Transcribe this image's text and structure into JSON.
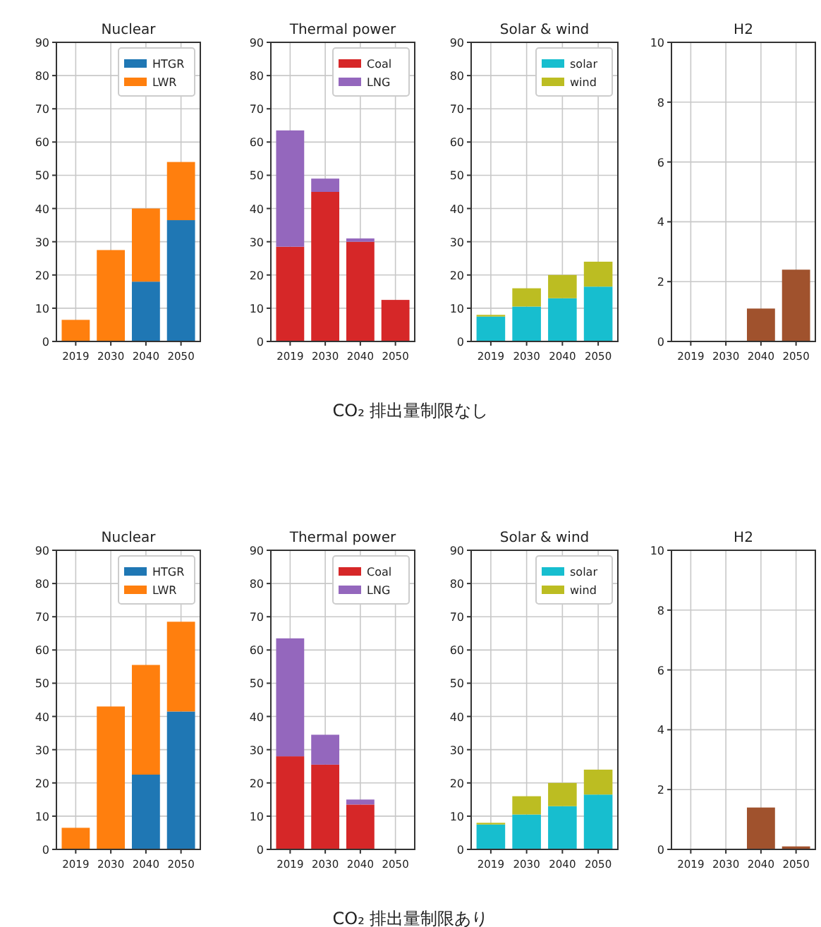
{
  "chart_data": [
    {
      "type": "bar",
      "title": "Nuclear",
      "categories": [
        "2019",
        "2030",
        "2040",
        "2050"
      ],
      "stacked": true,
      "ylim": [
        0,
        90
      ],
      "yticks": [
        0,
        10,
        20,
        30,
        40,
        50,
        60,
        70,
        80,
        90
      ],
      "grid": true,
      "legend": "top right",
      "annotations": [
        "CO₂ 排出量制限なし"
      ],
      "series": [
        {
          "name": "HTGR",
          "color": "#1f77b4",
          "values": [
            0,
            0,
            18,
            36.5
          ]
        },
        {
          "name": "LWR",
          "color": "#ff7f0e",
          "values": [
            6.5,
            27.5,
            22,
            17.5
          ]
        }
      ]
    },
    {
      "type": "bar",
      "title": "Thermal power",
      "categories": [
        "2019",
        "2030",
        "2040",
        "2050"
      ],
      "stacked": true,
      "ylim": [
        0,
        90
      ],
      "yticks": [
        0,
        10,
        20,
        30,
        40,
        50,
        60,
        70,
        80,
        90
      ],
      "grid": true,
      "legend": "top right",
      "series": [
        {
          "name": "Coal",
          "color": "#d62728",
          "values": [
            28.5,
            45,
            30,
            12.5
          ]
        },
        {
          "name": "LNG",
          "color": "#9467bd",
          "values": [
            35,
            4,
            1,
            0
          ]
        }
      ]
    },
    {
      "type": "bar",
      "title": "Solar & wind",
      "categories": [
        "2019",
        "2030",
        "2040",
        "2050"
      ],
      "stacked": true,
      "ylim": [
        0,
        90
      ],
      "yticks": [
        0,
        10,
        20,
        30,
        40,
        50,
        60,
        70,
        80,
        90
      ],
      "grid": true,
      "legend": "top right",
      "series": [
        {
          "name": "solar",
          "color": "#17becf",
          "values": [
            7.5,
            10.5,
            13,
            16.5
          ]
        },
        {
          "name": "wind",
          "color": "#bcbd22",
          "values": [
            0.5,
            5.5,
            7,
            7.5
          ]
        }
      ]
    },
    {
      "type": "bar",
      "title": "H2",
      "categories": [
        "2019",
        "2030",
        "2040",
        "2050"
      ],
      "ylim": [
        0,
        10
      ],
      "yticks": [
        0,
        2,
        4,
        6,
        8,
        10
      ],
      "grid": true,
      "color": "#a0522d",
      "values": [
        0,
        0,
        1.1,
        2.4
      ]
    },
    {
      "type": "bar",
      "title": "Nuclear",
      "categories": [
        "2019",
        "2030",
        "2040",
        "2050"
      ],
      "stacked": true,
      "ylim": [
        0,
        90
      ],
      "yticks": [
        0,
        10,
        20,
        30,
        40,
        50,
        60,
        70,
        80,
        90
      ],
      "grid": true,
      "legend": "top right",
      "annotations": [
        "CO₂ 排出量制限あり"
      ],
      "series": [
        {
          "name": "HTGR",
          "color": "#1f77b4",
          "values": [
            0,
            0,
            22.5,
            41.5
          ]
        },
        {
          "name": "LWR",
          "color": "#ff7f0e",
          "values": [
            6.5,
            43,
            33,
            27
          ]
        }
      ]
    },
    {
      "type": "bar",
      "title": "Thermal power",
      "categories": [
        "2019",
        "2030",
        "2040",
        "2050"
      ],
      "stacked": true,
      "ylim": [
        0,
        90
      ],
      "yticks": [
        0,
        10,
        20,
        30,
        40,
        50,
        60,
        70,
        80,
        90
      ],
      "grid": true,
      "legend": "top right",
      "series": [
        {
          "name": "Coal",
          "color": "#d62728",
          "values": [
            28,
            25.5,
            13.5,
            0
          ]
        },
        {
          "name": "LNG",
          "color": "#9467bd",
          "values": [
            35.5,
            9,
            1.5,
            0
          ]
        }
      ]
    },
    {
      "type": "bar",
      "title": "Solar & wind",
      "categories": [
        "2019",
        "2030",
        "2040",
        "2050"
      ],
      "stacked": true,
      "ylim": [
        0,
        90
      ],
      "yticks": [
        0,
        10,
        20,
        30,
        40,
        50,
        60,
        70,
        80,
        90
      ],
      "grid": true,
      "legend": "top right",
      "series": [
        {
          "name": "solar",
          "color": "#17becf",
          "values": [
            7.5,
            10.5,
            13,
            16.5
          ]
        },
        {
          "name": "wind",
          "color": "#bcbd22",
          "values": [
            0.5,
            5.5,
            7,
            7.5
          ]
        }
      ]
    },
    {
      "type": "bar",
      "title": "H2",
      "categories": [
        "2019",
        "2030",
        "2040",
        "2050"
      ],
      "ylim": [
        0,
        10
      ],
      "yticks": [
        0,
        2,
        4,
        6,
        8,
        10
      ],
      "grid": true,
      "color": "#a0522d",
      "values": [
        0,
        0,
        1.4,
        0.1
      ]
    }
  ]
}
